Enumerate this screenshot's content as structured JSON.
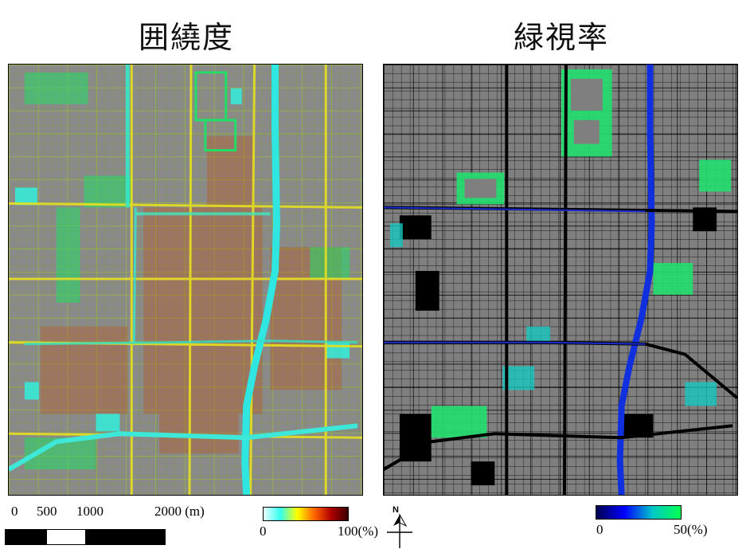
{
  "titles": {
    "left": "囲繞度",
    "right": "緑視率"
  },
  "maps": {
    "left": {
      "background": "#8a8a8a",
      "layer": "enclosure-index"
    },
    "right": {
      "background": "#7f7f7f",
      "layer": "green-view-index"
    }
  },
  "scale_bar": {
    "ticks": [
      "0",
      "500",
      "1000",
      "2000 (m)"
    ],
    "segments": [
      "black",
      "white",
      "black",
      "black"
    ]
  },
  "legend_left": {
    "min_label": "0",
    "max_label": "100(%)",
    "colors": [
      "#e9ffff",
      "#33ffee",
      "#ffff00",
      "#ff6600",
      "#b00000",
      "#3a0000"
    ]
  },
  "legend_right": {
    "min_label": "0",
    "max_label": "50(%)",
    "colors": [
      "#000050",
      "#0000ff",
      "#00c8c8",
      "#00ff50"
    ]
  },
  "north_arrow": {
    "label": "N",
    "icon": "north-arrow-icon"
  }
}
